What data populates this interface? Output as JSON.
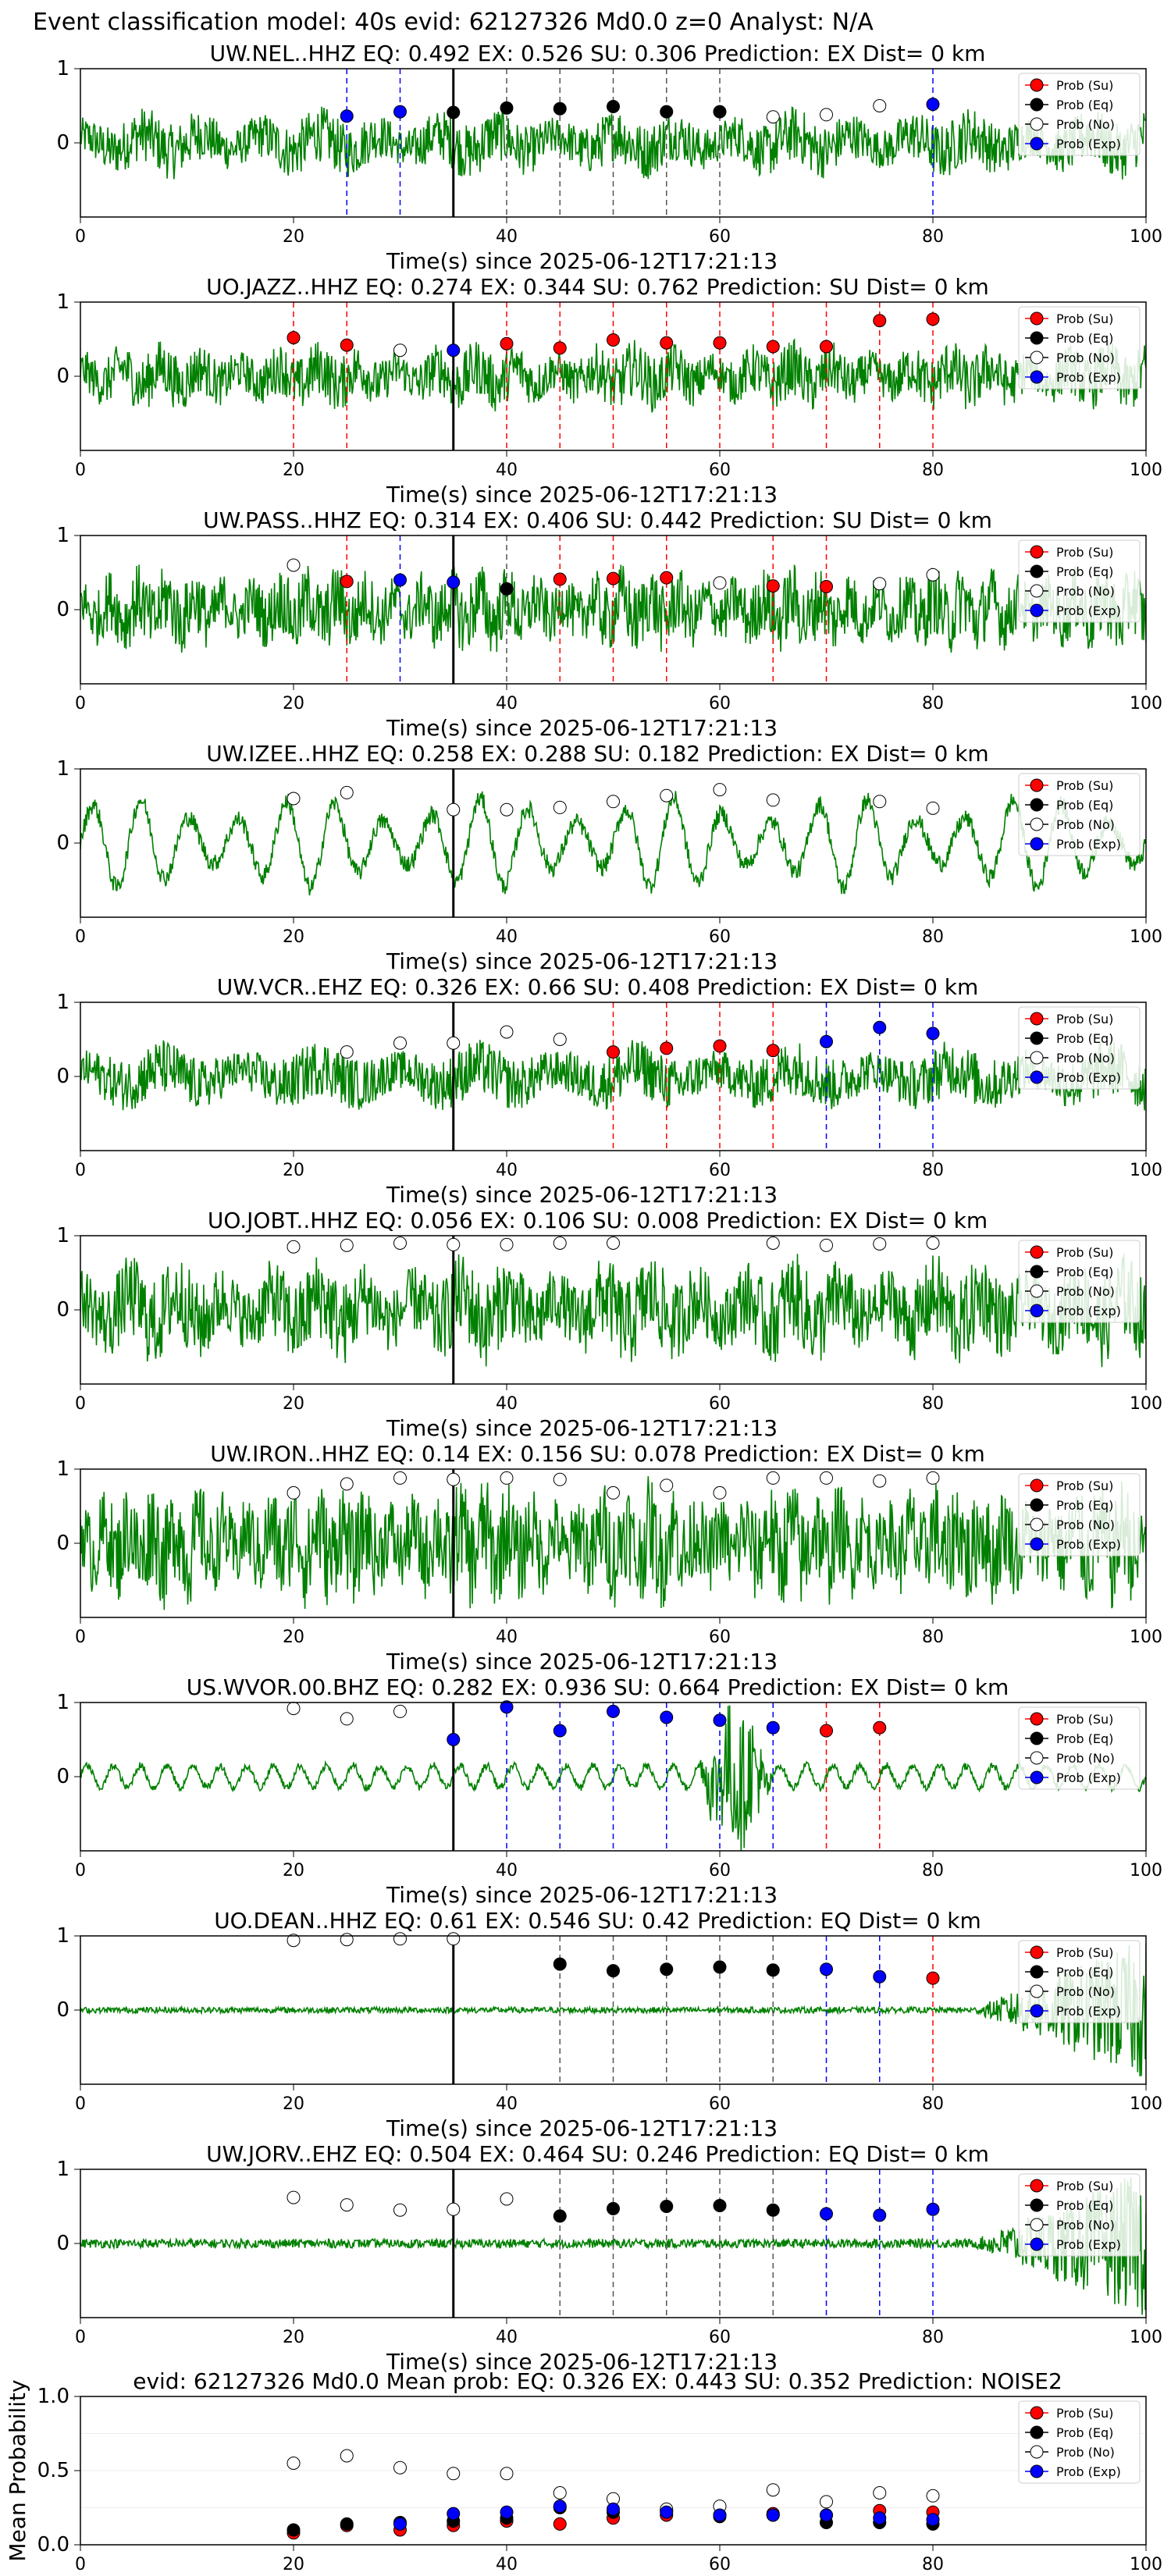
{
  "figure": {
    "title": "Event classification model: 40s evid: 62127326 Md0.0 z=0 Analyst: N/A"
  },
  "legend_labels": [
    "Prob (Su)",
    "Prob (Eq)",
    "Prob (No)",
    "Prob (Exp)"
  ],
  "colors": {
    "waveform": "#008000",
    "su": "#ff0000",
    "eq": "#000000",
    "no": "#ffffff",
    "exp": "#0000ff",
    "pick_line": "#000000",
    "axes": "#000000"
  },
  "chart_data": [
    {
      "type": "line",
      "title": "UW.NEL..HHZ   EQ: 0.492  EX: 0.526  SU: 0.306   Prediction: EX    Dist= 0 km",
      "xlabel": "Time(s) since 2025-06-12T17:21:13",
      "xlim": [
        0,
        100
      ],
      "ylim": [
        -1,
        1
      ],
      "x_ticks": [
        "0",
        "20",
        "40",
        "60",
        "80",
        "100"
      ],
      "y_ticks": [
        "0",
        "1"
      ],
      "waveform": {
        "style": "noisy",
        "amp": 0.35,
        "freq": 1.2
      },
      "origin_line": 35,
      "points": [
        {
          "t": 25,
          "p": 0.36,
          "cls": "exp"
        },
        {
          "t": 30,
          "p": 0.42,
          "cls": "exp"
        },
        {
          "t": 35,
          "p": 0.41,
          "cls": "eq"
        },
        {
          "t": 40,
          "p": 0.47,
          "cls": "eq"
        },
        {
          "t": 45,
          "p": 0.46,
          "cls": "eq"
        },
        {
          "t": 50,
          "p": 0.49,
          "cls": "eq"
        },
        {
          "t": 55,
          "p": 0.42,
          "cls": "eq"
        },
        {
          "t": 60,
          "p": 0.42,
          "cls": "eq"
        },
        {
          "t": 65,
          "p": 0.35,
          "cls": "no"
        },
        {
          "t": 70,
          "p": 0.38,
          "cls": "no"
        },
        {
          "t": 75,
          "p": 0.5,
          "cls": "no"
        },
        {
          "t": 80,
          "p": 0.52,
          "cls": "exp"
        }
      ]
    },
    {
      "type": "line",
      "title": "UO.JAZZ..HHZ   EQ: 0.274  EX: 0.344  SU: 0.762   Prediction: SU    Dist= 0 km",
      "xlabel": "Time(s) since 2025-06-12T17:21:13",
      "xlim": [
        0,
        100
      ],
      "ylim": [
        -1,
        1
      ],
      "x_ticks": [
        "0",
        "20",
        "40",
        "60",
        "80",
        "100"
      ],
      "y_ticks": [
        "0",
        "1"
      ],
      "waveform": {
        "style": "noisy",
        "amp": 0.35,
        "freq": 1.8
      },
      "origin_line": 35,
      "points": [
        {
          "t": 20,
          "p": 0.52,
          "cls": "su"
        },
        {
          "t": 25,
          "p": 0.42,
          "cls": "su"
        },
        {
          "t": 30,
          "p": 0.35,
          "cls": "no"
        },
        {
          "t": 35,
          "p": 0.35,
          "cls": "exp"
        },
        {
          "t": 40,
          "p": 0.44,
          "cls": "su"
        },
        {
          "t": 45,
          "p": 0.38,
          "cls": "su"
        },
        {
          "t": 50,
          "p": 0.49,
          "cls": "su"
        },
        {
          "t": 55,
          "p": 0.45,
          "cls": "su"
        },
        {
          "t": 60,
          "p": 0.45,
          "cls": "su"
        },
        {
          "t": 65,
          "p": 0.4,
          "cls": "su"
        },
        {
          "t": 70,
          "p": 0.4,
          "cls": "su"
        },
        {
          "t": 75,
          "p": 0.75,
          "cls": "su"
        },
        {
          "t": 80,
          "p": 0.77,
          "cls": "su"
        }
      ]
    },
    {
      "type": "line",
      "title": "UW.PASS..HHZ   EQ: 0.314  EX: 0.406  SU: 0.442   Prediction: SU    Dist= 0 km",
      "xlabel": "Time(s) since 2025-06-12T17:21:13",
      "xlim": [
        0,
        100
      ],
      "ylim": [
        -1,
        1
      ],
      "x_ticks": [
        "0",
        "20",
        "40",
        "60",
        "80",
        "100"
      ],
      "y_ticks": [
        "0",
        "1"
      ],
      "waveform": {
        "style": "noisy",
        "amp": 0.45,
        "freq": 2.5
      },
      "origin_line": 35,
      "points": [
        {
          "t": 20,
          "p": 0.6,
          "cls": "no"
        },
        {
          "t": 25,
          "p": 0.38,
          "cls": "su"
        },
        {
          "t": 30,
          "p": 0.4,
          "cls": "exp"
        },
        {
          "t": 35,
          "p": 0.37,
          "cls": "exp"
        },
        {
          "t": 40,
          "p": 0.28,
          "cls": "eq"
        },
        {
          "t": 45,
          "p": 0.41,
          "cls": "su"
        },
        {
          "t": 50,
          "p": 0.42,
          "cls": "su"
        },
        {
          "t": 55,
          "p": 0.43,
          "cls": "su"
        },
        {
          "t": 60,
          "p": 0.36,
          "cls": "no"
        },
        {
          "t": 65,
          "p": 0.32,
          "cls": "su"
        },
        {
          "t": 70,
          "p": 0.31,
          "cls": "su"
        },
        {
          "t": 75,
          "p": 0.35,
          "cls": "no"
        },
        {
          "t": 80,
          "p": 0.47,
          "cls": "no"
        }
      ]
    },
    {
      "type": "line",
      "title": "UW.IZEE..HHZ   EQ: 0.258  EX: 0.288  SU: 0.182   Prediction: EX    Dist= 0 km",
      "xlabel": "Time(s) since 2025-06-12T17:21:13",
      "xlim": [
        0,
        100
      ],
      "ylim": [
        -1,
        1
      ],
      "x_ticks": [
        "0",
        "20",
        "40",
        "60",
        "80",
        "100"
      ],
      "y_ticks": [
        "0",
        "1"
      ],
      "waveform": {
        "style": "swell",
        "amp": 0.55,
        "freq": 0.22
      },
      "origin_line": 35,
      "points": [
        {
          "t": 20,
          "p": 0.6,
          "cls": "no"
        },
        {
          "t": 25,
          "p": 0.68,
          "cls": "no"
        },
        {
          "t": 35,
          "p": 0.45,
          "cls": "no"
        },
        {
          "t": 40,
          "p": 0.45,
          "cls": "no"
        },
        {
          "t": 45,
          "p": 0.48,
          "cls": "no"
        },
        {
          "t": 50,
          "p": 0.56,
          "cls": "no"
        },
        {
          "t": 55,
          "p": 0.64,
          "cls": "no"
        },
        {
          "t": 60,
          "p": 0.72,
          "cls": "no"
        },
        {
          "t": 65,
          "p": 0.58,
          "cls": "no"
        },
        {
          "t": 75,
          "p": 0.56,
          "cls": "no"
        },
        {
          "t": 80,
          "p": 0.47,
          "cls": "no"
        }
      ]
    },
    {
      "type": "line",
      "title": "UW.VCR..EHZ   EQ: 0.326  EX: 0.66  SU: 0.408   Prediction: EX    Dist= 0 km",
      "xlabel": "Time(s) since 2025-06-12T17:21:13",
      "xlim": [
        0,
        100
      ],
      "ylim": [
        -1,
        1
      ],
      "x_ticks": [
        "0",
        "20",
        "40",
        "60",
        "80",
        "100"
      ],
      "y_ticks": [
        "0",
        "1"
      ],
      "waveform": {
        "style": "noisy",
        "amp": 0.35,
        "freq": 0.9
      },
      "origin_line": 35,
      "points": [
        {
          "t": 25,
          "p": 0.33,
          "cls": "no"
        },
        {
          "t": 30,
          "p": 0.45,
          "cls": "no"
        },
        {
          "t": 35,
          "p": 0.45,
          "cls": "no"
        },
        {
          "t": 40,
          "p": 0.6,
          "cls": "no"
        },
        {
          "t": 45,
          "p": 0.5,
          "cls": "no"
        },
        {
          "t": 50,
          "p": 0.33,
          "cls": "su"
        },
        {
          "t": 55,
          "p": 0.38,
          "cls": "su"
        },
        {
          "t": 60,
          "p": 0.41,
          "cls": "su"
        },
        {
          "t": 65,
          "p": 0.35,
          "cls": "su"
        },
        {
          "t": 70,
          "p": 0.47,
          "cls": "exp"
        },
        {
          "t": 75,
          "p": 0.66,
          "cls": "exp"
        },
        {
          "t": 80,
          "p": 0.58,
          "cls": "exp"
        }
      ]
    },
    {
      "type": "line",
      "title": "UO.JOBT..HHZ   EQ: 0.056  EX: 0.106  SU: 0.008   Prediction: EX    Dist= 0 km",
      "xlabel": "Time(s) since 2025-06-12T17:21:13",
      "xlim": [
        0,
        100
      ],
      "ylim": [
        -1,
        1
      ],
      "x_ticks": [
        "0",
        "20",
        "40",
        "60",
        "80",
        "100"
      ],
      "y_ticks": [
        "0",
        "1"
      ],
      "waveform": {
        "style": "noisy",
        "amp": 0.55,
        "freq": 1.5
      },
      "origin_line": 35,
      "points": [
        {
          "t": 20,
          "p": 0.85,
          "cls": "no"
        },
        {
          "t": 25,
          "p": 0.87,
          "cls": "no"
        },
        {
          "t": 30,
          "p": 0.9,
          "cls": "no"
        },
        {
          "t": 35,
          "p": 0.88,
          "cls": "no"
        },
        {
          "t": 40,
          "p": 0.88,
          "cls": "no"
        },
        {
          "t": 45,
          "p": 0.9,
          "cls": "no"
        },
        {
          "t": 50,
          "p": 0.9,
          "cls": "no"
        },
        {
          "t": 65,
          "p": 0.9,
          "cls": "no"
        },
        {
          "t": 70,
          "p": 0.87,
          "cls": "no"
        },
        {
          "t": 75,
          "p": 0.89,
          "cls": "no"
        },
        {
          "t": 80,
          "p": 0.9,
          "cls": "no"
        }
      ]
    },
    {
      "type": "line",
      "title": "UW.IRON..HHZ   EQ: 0.14  EX: 0.156  SU: 0.078   Prediction: EX    Dist= 0 km",
      "xlabel": "Time(s) since 2025-06-12T17:21:13",
      "xlim": [
        0,
        100
      ],
      "ylim": [
        -1,
        1
      ],
      "x_ticks": [
        "0",
        "20",
        "40",
        "60",
        "80",
        "100"
      ],
      "y_ticks": [
        "0",
        "1"
      ],
      "waveform": {
        "style": "noisy",
        "amp": 0.65,
        "freq": 3.0
      },
      "origin_line": 35,
      "points": [
        {
          "t": 20,
          "p": 0.68,
          "cls": "no"
        },
        {
          "t": 25,
          "p": 0.8,
          "cls": "no"
        },
        {
          "t": 30,
          "p": 0.88,
          "cls": "no"
        },
        {
          "t": 35,
          "p": 0.86,
          "cls": "no"
        },
        {
          "t": 40,
          "p": 0.88,
          "cls": "no"
        },
        {
          "t": 45,
          "p": 0.86,
          "cls": "no"
        },
        {
          "t": 50,
          "p": 0.68,
          "cls": "no"
        },
        {
          "t": 55,
          "p": 0.78,
          "cls": "no"
        },
        {
          "t": 60,
          "p": 0.68,
          "cls": "no"
        },
        {
          "t": 65,
          "p": 0.88,
          "cls": "no"
        },
        {
          "t": 70,
          "p": 0.88,
          "cls": "no"
        },
        {
          "t": 75,
          "p": 0.84,
          "cls": "no"
        },
        {
          "t": 80,
          "p": 0.88,
          "cls": "no"
        }
      ]
    },
    {
      "type": "line",
      "title": "US.WVOR.00.BHZ   EQ: 0.282  EX: 0.936  SU: 0.664   Prediction: EX    Dist= 0 km",
      "xlabel": "Time(s) since 2025-06-12T17:21:13",
      "xlim": [
        0,
        100
      ],
      "ylim": [
        -1,
        1
      ],
      "x_ticks": [
        "0",
        "20",
        "40",
        "60",
        "80",
        "100"
      ],
      "y_ticks": [
        "0",
        "1"
      ],
      "waveform": {
        "style": "burst",
        "amp": 0.15,
        "freq": 0.4,
        "burst": [
          58,
          65
        ],
        "burst_amp": 0.75
      },
      "origin_line": 35,
      "points": [
        {
          "t": 20,
          "p": 0.92,
          "cls": "no"
        },
        {
          "t": 25,
          "p": 0.78,
          "cls": "no"
        },
        {
          "t": 30,
          "p": 0.88,
          "cls": "no"
        },
        {
          "t": 35,
          "p": 0.5,
          "cls": "exp"
        },
        {
          "t": 40,
          "p": 0.94,
          "cls": "exp"
        },
        {
          "t": 45,
          "p": 0.62,
          "cls": "exp"
        },
        {
          "t": 50,
          "p": 0.88,
          "cls": "exp"
        },
        {
          "t": 55,
          "p": 0.8,
          "cls": "exp"
        },
        {
          "t": 60,
          "p": 0.76,
          "cls": "exp"
        },
        {
          "t": 65,
          "p": 0.66,
          "cls": "exp"
        },
        {
          "t": 70,
          "p": 0.62,
          "cls": "su"
        },
        {
          "t": 75,
          "p": 0.66,
          "cls": "su"
        }
      ]
    },
    {
      "type": "line",
      "title": "UO.DEAN..HHZ   EQ: 0.61  EX: 0.546  SU: 0.42   Prediction: EQ    Dist= 0 km",
      "xlabel": "Time(s) since 2025-06-12T17:21:13",
      "xlim": [
        0,
        100
      ],
      "ylim": [
        -1,
        1
      ],
      "x_ticks": [
        "0",
        "20",
        "40",
        "60",
        "80",
        "100"
      ],
      "y_ticks": [
        "0",
        "1"
      ],
      "waveform": {
        "style": "tail",
        "amp": 0.04,
        "freq": 0.5,
        "tail_start": 84,
        "tail_amp": 0.85
      },
      "origin_line": 35,
      "points": [
        {
          "t": 20,
          "p": 0.94,
          "cls": "no"
        },
        {
          "t": 25,
          "p": 0.95,
          "cls": "no"
        },
        {
          "t": 30,
          "p": 0.96,
          "cls": "no"
        },
        {
          "t": 35,
          "p": 0.96,
          "cls": "no"
        },
        {
          "t": 45,
          "p": 0.62,
          "cls": "eq"
        },
        {
          "t": 50,
          "p": 0.53,
          "cls": "eq"
        },
        {
          "t": 55,
          "p": 0.55,
          "cls": "eq"
        },
        {
          "t": 60,
          "p": 0.58,
          "cls": "eq"
        },
        {
          "t": 65,
          "p": 0.54,
          "cls": "eq"
        },
        {
          "t": 70,
          "p": 0.55,
          "cls": "exp"
        },
        {
          "t": 75,
          "p": 0.45,
          "cls": "exp"
        },
        {
          "t": 80,
          "p": 0.43,
          "cls": "su"
        }
      ]
    },
    {
      "type": "line",
      "title": "UW.JORV..EHZ   EQ: 0.504  EX: 0.464  SU: 0.246   Prediction: EQ    Dist= 0 km",
      "xlabel": "Time(s) since 2025-06-12T17:21:13",
      "xlim": [
        0,
        100
      ],
      "ylim": [
        -1,
        1
      ],
      "x_ticks": [
        "0",
        "20",
        "40",
        "60",
        "80",
        "100"
      ],
      "y_ticks": [
        "0",
        "1"
      ],
      "waveform": {
        "style": "tail",
        "amp": 0.06,
        "freq": 3.0,
        "tail_start": 84,
        "tail_amp": 0.85
      },
      "origin_line": 35,
      "points": [
        {
          "t": 20,
          "p": 0.62,
          "cls": "no"
        },
        {
          "t": 25,
          "p": 0.52,
          "cls": "no"
        },
        {
          "t": 30,
          "p": 0.45,
          "cls": "no"
        },
        {
          "t": 35,
          "p": 0.46,
          "cls": "no"
        },
        {
          "t": 40,
          "p": 0.6,
          "cls": "no"
        },
        {
          "t": 45,
          "p": 0.37,
          "cls": "eq"
        },
        {
          "t": 50,
          "p": 0.47,
          "cls": "eq"
        },
        {
          "t": 55,
          "p": 0.5,
          "cls": "eq"
        },
        {
          "t": 60,
          "p": 0.51,
          "cls": "eq"
        },
        {
          "t": 65,
          "p": 0.45,
          "cls": "eq"
        },
        {
          "t": 70,
          "p": 0.4,
          "cls": "exp"
        },
        {
          "t": 75,
          "p": 0.38,
          "cls": "exp"
        },
        {
          "t": 80,
          "p": 0.46,
          "cls": "exp"
        }
      ]
    },
    {
      "type": "scatter",
      "title": "evid: 62127326  Md0.0   Mean prob:   EQ: 0.326  EX: 0.443  SU: 0.352   Prediction: NOISE2",
      "ylabel": "Mean Probability",
      "xlim": [
        0,
        100
      ],
      "ylim": [
        0,
        1
      ],
      "x_ticks": [
        "0",
        "20",
        "40",
        "60",
        "80",
        "100"
      ],
      "y_ticks": [
        "0.0",
        "0.5",
        "1.0"
      ],
      "series": [
        {
          "name": "Prob (Su)",
          "cls": "su",
          "t": [
            20,
            25,
            30,
            35,
            40,
            45,
            50,
            55,
            60,
            65,
            70,
            75,
            80
          ],
          "p": [
            0.08,
            0.13,
            0.1,
            0.13,
            0.16,
            0.14,
            0.18,
            0.2,
            0.2,
            0.21,
            0.2,
            0.23,
            0.22
          ]
        },
        {
          "name": "Prob (Eq)",
          "cls": "eq",
          "t": [
            20,
            25,
            30,
            35,
            40,
            45,
            50,
            55,
            60,
            65,
            70,
            75,
            80
          ],
          "p": [
            0.1,
            0.14,
            0.15,
            0.16,
            0.18,
            0.25,
            0.22,
            0.23,
            0.19,
            0.2,
            0.15,
            0.15,
            0.14
          ]
        },
        {
          "name": "Prob (No)",
          "cls": "no",
          "t": [
            20,
            25,
            30,
            35,
            40,
            45,
            50,
            55,
            60,
            65,
            70,
            75,
            80
          ],
          "p": [
            0.55,
            0.6,
            0.52,
            0.48,
            0.48,
            0.35,
            0.31,
            0.24,
            0.26,
            0.37,
            0.29,
            0.35,
            0.33
          ]
        },
        {
          "name": "Prob (Exp)",
          "cls": "exp",
          "t": [
            30,
            35,
            40,
            45,
            50,
            55,
            60,
            65,
            70,
            75,
            80
          ],
          "p": [
            0.14,
            0.21,
            0.22,
            0.26,
            0.24,
            0.22,
            0.2,
            0.2,
            0.2,
            0.18,
            0.17
          ]
        }
      ]
    }
  ]
}
